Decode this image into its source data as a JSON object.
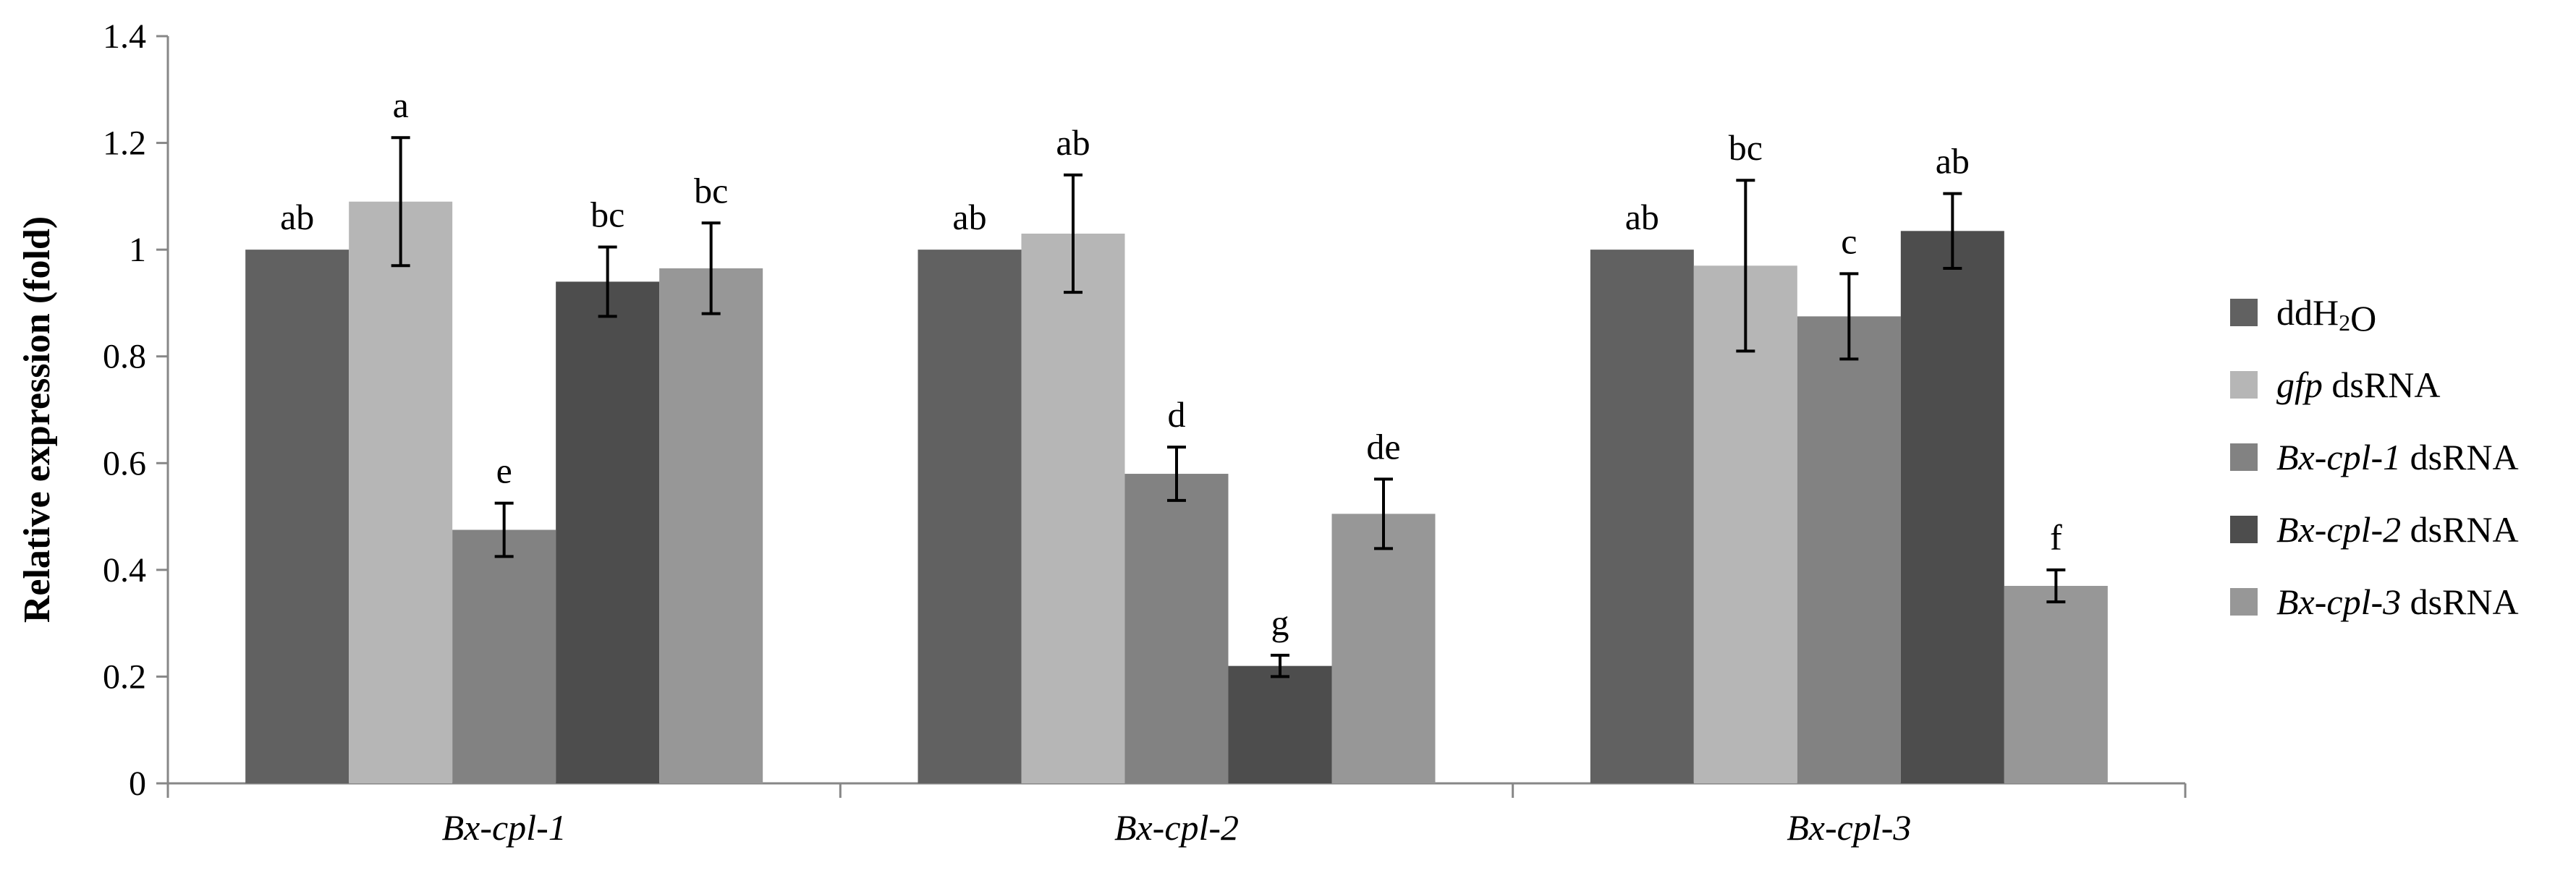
{
  "chart_data": {
    "type": "bar",
    "title": "",
    "xlabel": "",
    "ylabel": "Relative expression (fold)",
    "ylim": [
      0,
      1.4
    ],
    "yticks": [
      "0",
      "0.2",
      "0.4",
      "0.6",
      "0.8",
      "1",
      "1.2",
      "1.4"
    ],
    "ytick_values": [
      0,
      0.2,
      0.4,
      0.6,
      0.8,
      1.0,
      1.2,
      1.4
    ],
    "grid": false,
    "legend_position": "right",
    "categories": [
      "Bx-cpl-1",
      "Bx-cpl-2",
      "Bx-cpl-3"
    ],
    "series": [
      {
        "name_parts": [
          {
            "text": "ddH",
            "italic": false
          },
          {
            "text": "2",
            "italic": false,
            "sub": true
          },
          {
            "text": "O",
            "italic": false
          }
        ],
        "color": "#616161",
        "values": [
          1.0,
          1.0,
          1.0
        ],
        "errors": [
          0,
          0,
          0
        ],
        "labels": [
          "ab",
          "ab",
          "ab"
        ]
      },
      {
        "name_parts": [
          {
            "text": "gfp",
            "italic": true
          },
          {
            "text": " dsRNA",
            "italic": false
          }
        ],
        "color": "#b6b6b6",
        "values": [
          1.09,
          1.03,
          0.97
        ],
        "errors": [
          0.12,
          0.11,
          0.16
        ],
        "labels": [
          "a",
          "ab",
          "bc"
        ]
      },
      {
        "name_parts": [
          {
            "text": "Bx-cpl-1",
            "italic": true
          },
          {
            "text": " dsRNA",
            "italic": false
          }
        ],
        "color": "#828282",
        "values": [
          0.475,
          0.58,
          0.875
        ],
        "errors": [
          0.05,
          0.05,
          0.08
        ],
        "labels": [
          "e",
          "d",
          "c"
        ]
      },
      {
        "name_parts": [
          {
            "text": "Bx-cpl-2",
            "italic": true
          },
          {
            "text": " dsRNA",
            "italic": false
          }
        ],
        "color": "#4d4d4d",
        "values": [
          0.94,
          0.22,
          1.035
        ],
        "errors": [
          0.065,
          0.02,
          0.07
        ],
        "labels": [
          "bc",
          "g",
          "ab"
        ]
      },
      {
        "name_parts": [
          {
            "text": "Bx-cpl-3",
            "italic": true
          },
          {
            "text": " dsRNA",
            "italic": false
          }
        ],
        "color": "#979797",
        "values": [
          0.965,
          0.505,
          0.37
        ],
        "errors": [
          0.085,
          0.065,
          0.03
        ],
        "labels": [
          "bc",
          "de",
          "f"
        ]
      }
    ]
  }
}
